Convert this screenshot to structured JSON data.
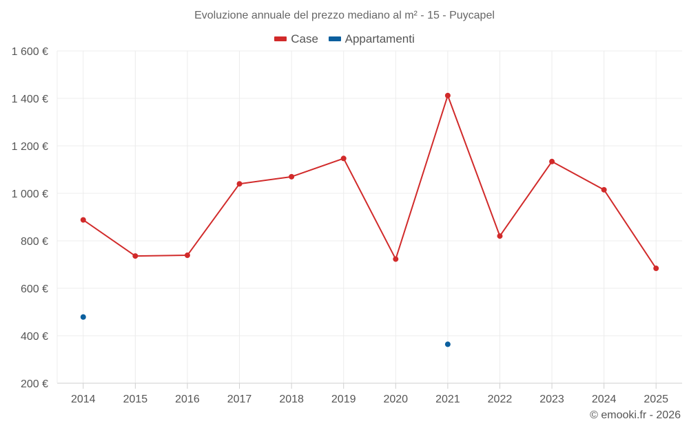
{
  "chart_data": {
    "type": "line",
    "title": "Evoluzione annuale del prezzo mediano al m² - 15 - Puycapel",
    "categories": [
      "2014",
      "2015",
      "2016",
      "2017",
      "2018",
      "2019",
      "2020",
      "2021",
      "2022",
      "2023",
      "2024",
      "2025"
    ],
    "y_tick_labels": [
      "200 €",
      "400 €",
      "600 €",
      "800 €",
      "1 000 €",
      "1 200 €",
      "1 400 €",
      "1 600 €"
    ],
    "y_ticks": [
      200,
      400,
      600,
      800,
      1000,
      1200,
      1400,
      1600
    ],
    "ylim": [
      200,
      1600
    ],
    "grid": true,
    "legend_position": "top",
    "series": [
      {
        "name": "Case",
        "color": "#d12a2a",
        "values": [
          888,
          736,
          739,
          1040,
          1070,
          1147,
          723,
          1412,
          820,
          1134,
          1015,
          684
        ]
      },
      {
        "name": "Appartamenti",
        "color": "#0b5f9e",
        "values": [
          479,
          null,
          null,
          null,
          null,
          null,
          null,
          364,
          null,
          null,
          null,
          null
        ]
      }
    ],
    "source": "© emooki.fr - 2026"
  }
}
